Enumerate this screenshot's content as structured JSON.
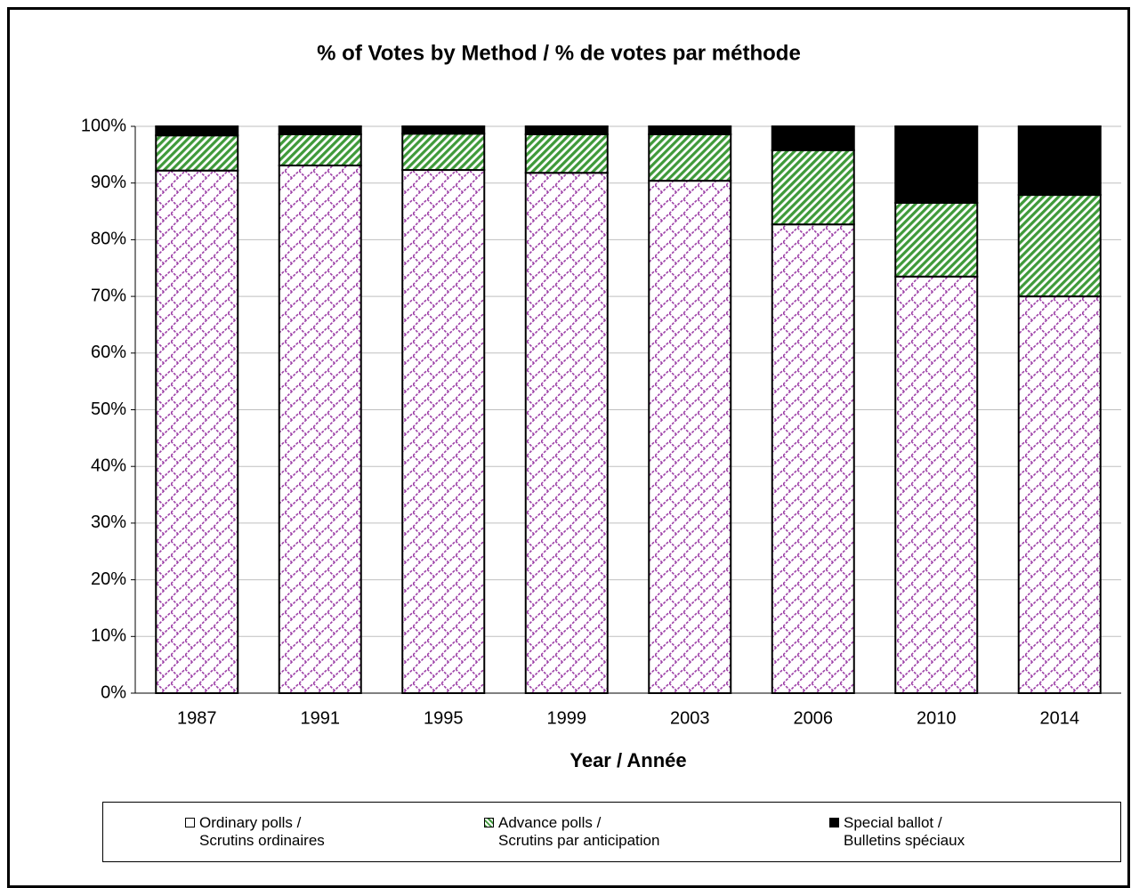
{
  "chart_data": {
    "type": "stacked_bar",
    "title": "% of Votes by Method / % de votes par méthode",
    "xlabel": "Year / Année",
    "categories": [
      "1987",
      "1991",
      "1995",
      "1999",
      "2003",
      "2006",
      "2010",
      "2014"
    ],
    "series": [
      {
        "name": "Ordinary polls /\nScrutins ordinaires",
        "color": "#9c3ea6",
        "pattern": "crosshatch",
        "values": [
          92.2,
          93.1,
          92.3,
          91.8,
          90.4,
          82.7,
          73.5,
          70.0
        ]
      },
      {
        "name": "Advance polls /\nScrutins par anticipation",
        "color": "#3f9a3a",
        "pattern": "stripes",
        "values": [
          6.2,
          5.5,
          6.4,
          6.8,
          8.2,
          13.1,
          13.0,
          17.9
        ]
      },
      {
        "name": "Special ballot /\nBulletins spéciaux",
        "color": "#000000",
        "pattern": "solid",
        "values": [
          1.6,
          1.4,
          1.3,
          1.4,
          1.4,
          4.2,
          13.5,
          12.1
        ]
      }
    ],
    "ylim": [
      0,
      100
    ],
    "yticks": [
      {
        "value": 0,
        "label": "0%"
      },
      {
        "value": 10,
        "label": "10%"
      },
      {
        "value": 20,
        "label": "20%"
      },
      {
        "value": 30,
        "label": "30%"
      },
      {
        "value": 40,
        "label": "40%"
      },
      {
        "value": 50,
        "label": "50%"
      },
      {
        "value": 60,
        "label": "60%"
      },
      {
        "value": 70,
        "label": "70%"
      },
      {
        "value": 80,
        "label": "80%"
      },
      {
        "value": 90,
        "label": "90%"
      },
      {
        "value": 100,
        "label": "100%"
      }
    ],
    "grid": true,
    "legend": "bottom"
  }
}
